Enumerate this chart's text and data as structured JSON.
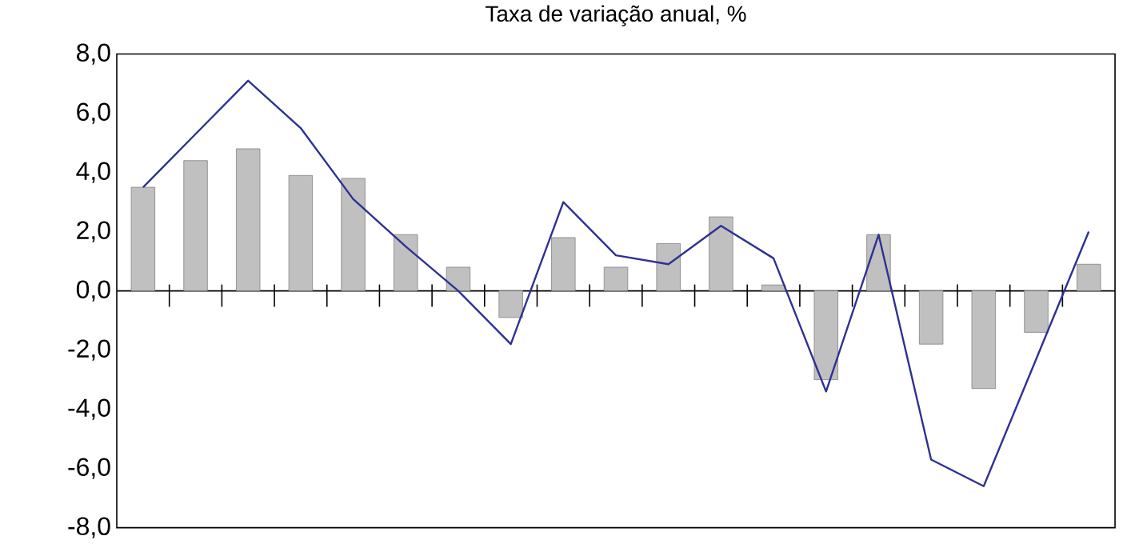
{
  "chart_data": {
    "type": "bar",
    "title": "Taxa de variação anual, %",
    "categories": [
      null,
      null,
      null,
      null,
      null,
      null,
      null,
      null,
      null,
      null,
      null,
      null,
      null,
      null,
      null,
      null,
      null,
      null,
      null
    ],
    "series": [
      {
        "color": "#c0c0c0",
        "values": [
          3.5,
          4.4,
          4.8,
          3.9,
          3.8,
          1.9,
          0.8,
          -0.9,
          1.8,
          0.8,
          1.6,
          2.5,
          0.2,
          -3.0,
          1.9,
          -1.8,
          -3.3,
          -1.4,
          0.9
        ]
      },
      {
        "type": "line",
        "color": "#2e3192",
        "values": [
          3.5,
          5.3,
          7.1,
          5.5,
          3.1,
          1.5,
          0.0,
          -1.8,
          3.0,
          1.2,
          0.9,
          2.2,
          1.1,
          -3.4,
          1.9,
          -5.7,
          -6.6,
          -2.3,
          2.0
        ]
      }
    ],
    "ylim": [
      -8,
      8
    ],
    "yticks": [
      {
        "value": -8,
        "label": "-8,0"
      },
      {
        "value": -6,
        "label": "-6,0"
      },
      {
        "value": -4,
        "label": "-4,0"
      },
      {
        "value": -2,
        "label": "-2,0"
      },
      {
        "value": 0,
        "label": "0,0"
      },
      {
        "value": 2,
        "label": "2,0"
      },
      {
        "value": 4,
        "label": "4,0"
      },
      {
        "value": 6,
        "label": "6,0"
      },
      {
        "value": 8,
        "label": "8,0"
      }
    ],
    "ref_lines": [
      {
        "axis": "y",
        "value": 0
      }
    ],
    "grid": false,
    "legend": false,
    "marker": "none",
    "line_style": "solid"
  }
}
